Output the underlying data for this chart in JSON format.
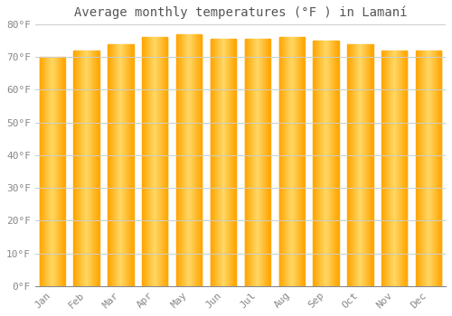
{
  "title": "Average monthly temperatures (°F ) in Lamaní",
  "months": [
    "Jan",
    "Feb",
    "Mar",
    "Apr",
    "May",
    "Jun",
    "Jul",
    "Aug",
    "Sep",
    "Oct",
    "Nov",
    "Dec"
  ],
  "values": [
    70.0,
    72.0,
    74.0,
    76.0,
    77.0,
    75.5,
    75.5,
    76.0,
    75.0,
    74.0,
    72.0,
    72.0
  ],
  "ylim": [
    0,
    80
  ],
  "yticks": [
    0,
    10,
    20,
    30,
    40,
    50,
    60,
    70,
    80
  ],
  "ytick_labels": [
    "0°F",
    "10°F",
    "20°F",
    "30°F",
    "40°F",
    "50°F",
    "60°F",
    "70°F",
    "80°F"
  ],
  "background_color": "#ffffff",
  "grid_color": "#cccccc",
  "title_fontsize": 10,
  "tick_fontsize": 8,
  "bar_color_center": "#FFD966",
  "bar_color_edge": "#FFA500",
  "bar_width": 0.75
}
